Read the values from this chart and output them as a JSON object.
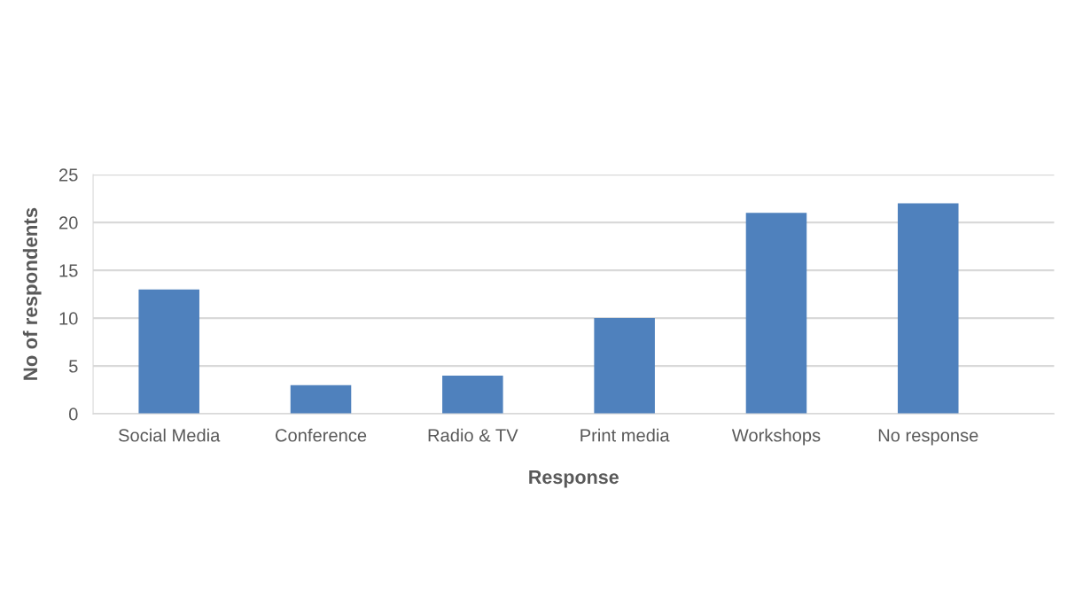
{
  "chart_data": {
    "type": "bar",
    "categories": [
      "Social Media",
      "Conference",
      "Radio & TV",
      "Print media",
      "Workshops",
      "No response"
    ],
    "values": [
      13,
      3,
      4,
      10,
      21,
      22
    ],
    "color": "#4f81bd",
    "xlabel": "Response",
    "ylabel": "No of respondents",
    "ylim": [
      0,
      25
    ],
    "yticks": [
      0,
      5,
      10,
      15,
      20,
      25
    ],
    "grid": "y"
  }
}
